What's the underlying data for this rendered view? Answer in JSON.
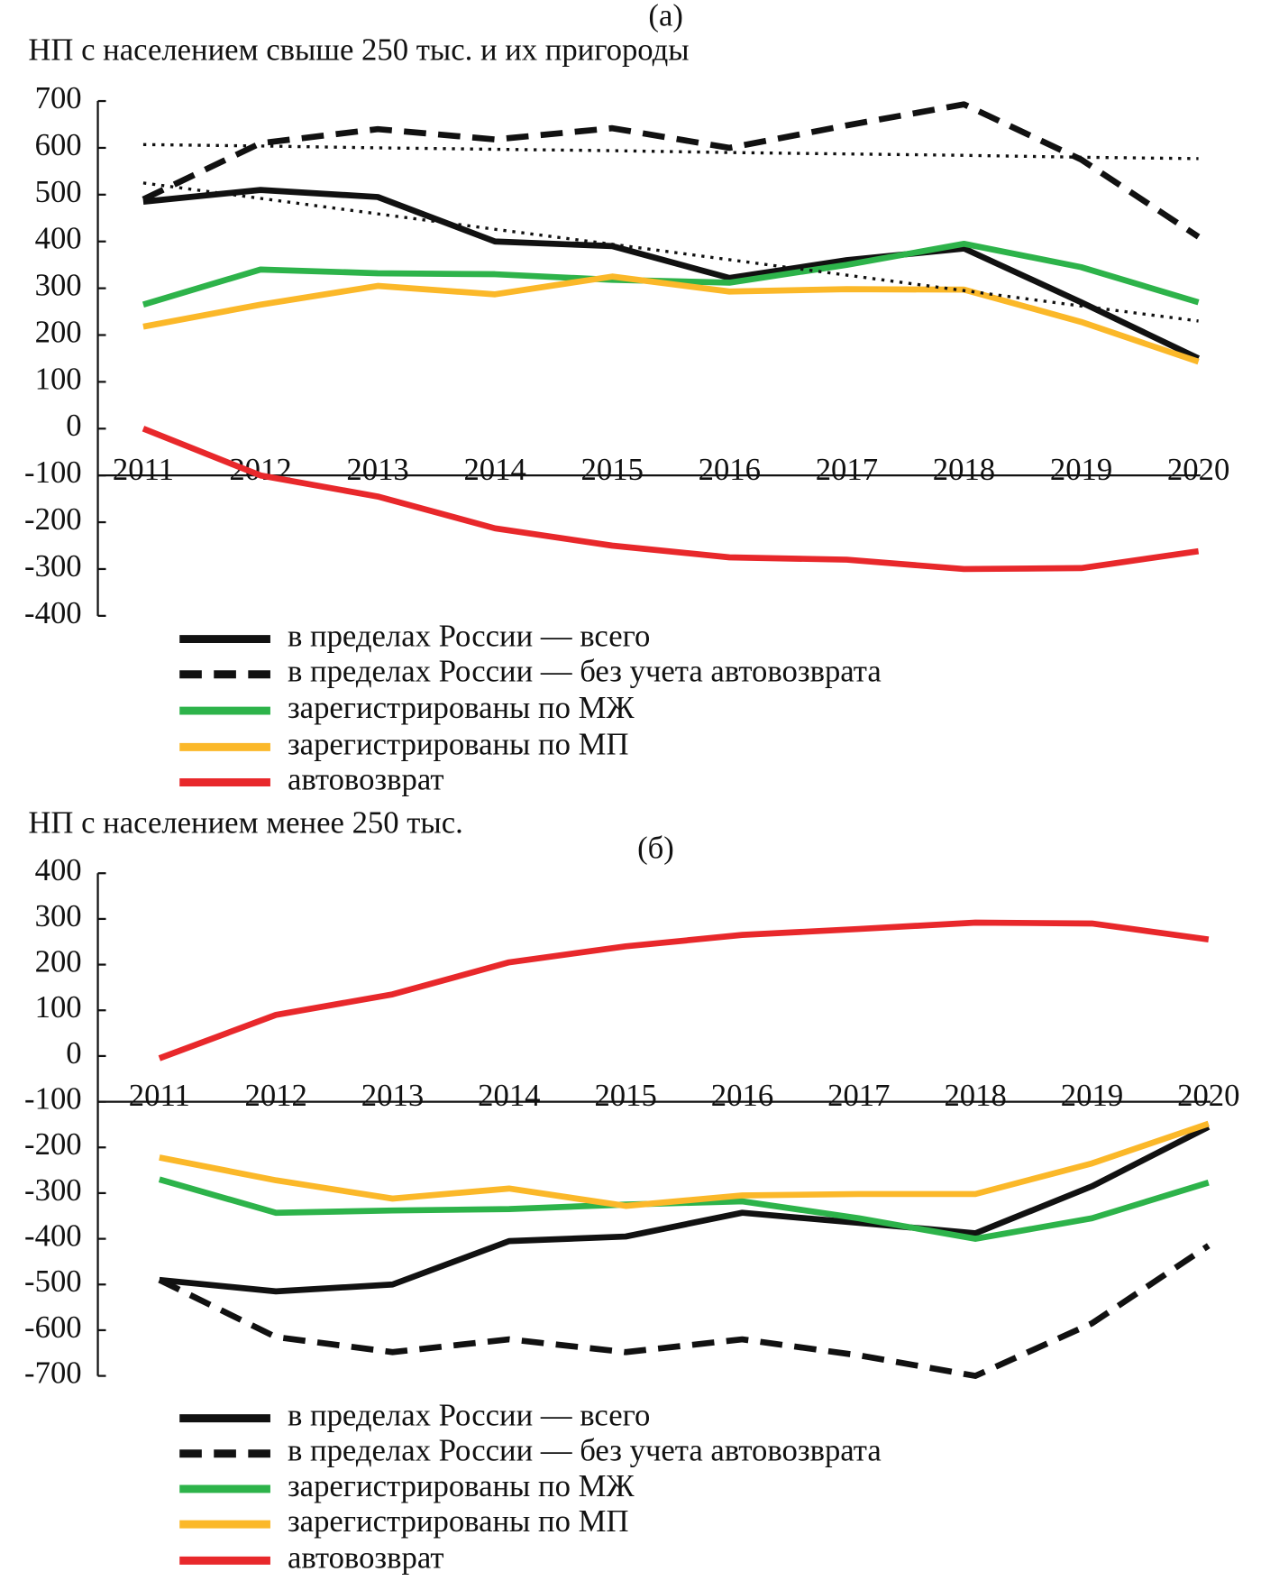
{
  "chart_data": [
    {
      "type": "line",
      "subtitle": "(а)",
      "title": "НП с населением свыше 250 тыс. и их пригороды",
      "categories": [
        "2011",
        "2012",
        "2013",
        "2014",
        "2015",
        "2016",
        "2017",
        "2018",
        "2019",
        "2020"
      ],
      "ylim": [
        -400,
        700
      ],
      "yticks": [
        -400,
        -300,
        -200,
        -100,
        0,
        100,
        200,
        300,
        400,
        500,
        600,
        700
      ],
      "x_axis_at": -100,
      "series": [
        {
          "name": "в пределах России — всего",
          "color": "#111111",
          "style": "solid",
          "values": [
            485,
            510,
            495,
            400,
            390,
            322,
            360,
            385,
            270,
            150
          ]
        },
        {
          "name": "в пределах России — без учета автовозврата",
          "color": "#111111",
          "style": "dashed",
          "values": [
            490,
            610,
            640,
            618,
            642,
            600,
            648,
            693,
            575,
            410
          ]
        },
        {
          "name": "зарегистрированы по МЖ",
          "color": "#2db34a",
          "style": "solid",
          "values": [
            265,
            340,
            332,
            330,
            318,
            312,
            350,
            395,
            345,
            270
          ]
        },
        {
          "name": "зарегистрированы по МП",
          "color": "#fbb829",
          "style": "solid",
          "values": [
            218,
            265,
            305,
            287,
            325,
            293,
            298,
            297,
            228,
            143
          ]
        },
        {
          "name": "автовозврат",
          "color": "#e8282b",
          "style": "solid",
          "values": [
            0,
            -100,
            -145,
            -213,
            -250,
            -275,
            -280,
            -300,
            -298,
            -262
          ]
        },
        {
          "color": "#111111",
          "style": "dotted",
          "values": [
            607,
            604,
            600,
            597,
            594,
            590,
            587,
            584,
            580,
            577
          ]
        },
        {
          "color": "#111111",
          "style": "dotted",
          "values": [
            525,
            492,
            459,
            426,
            394,
            361,
            328,
            295,
            262,
            230
          ]
        }
      ]
    },
    {
      "type": "line",
      "subtitle": "(б)",
      "title": "НП с населением менее 250 тыс.",
      "categories": [
        "2011",
        "2012",
        "2013",
        "2014",
        "2015",
        "2016",
        "2017",
        "2018",
        "2019",
        "2020"
      ],
      "ylim": [
        -700,
        400
      ],
      "yticks": [
        -700,
        -600,
        -500,
        -400,
        -300,
        -200,
        -100,
        0,
        100,
        200,
        300,
        400
      ],
      "x_axis_at": -100,
      "series": [
        {
          "name": "в пределах России — всего",
          "color": "#111111",
          "style": "solid",
          "values": [
            -490,
            -515,
            -500,
            -405,
            -395,
            -343,
            -365,
            -388,
            -285,
            -155
          ]
        },
        {
          "name": "в пределах России — без учета автовозврата",
          "color": "#111111",
          "style": "dashed",
          "values": [
            -490,
            -615,
            -648,
            -620,
            -648,
            -620,
            -655,
            -700,
            -585,
            -415
          ]
        },
        {
          "name": "зарегистрированы по МЖ",
          "color": "#2db34a",
          "style": "solid",
          "values": [
            -270,
            -343,
            -338,
            -335,
            -325,
            -318,
            -355,
            -400,
            -355,
            -277
          ]
        },
        {
          "name": "зарегистрированы по МП",
          "color": "#fbb829",
          "style": "solid",
          "values": [
            -222,
            -272,
            -312,
            -290,
            -328,
            -305,
            -302,
            -302,
            -235,
            -148
          ]
        },
        {
          "name": "автовозврат",
          "color": "#e8282b",
          "style": "solid",
          "values": [
            -5,
            90,
            135,
            205,
            240,
            265,
            278,
            292,
            290,
            255
          ]
        }
      ]
    }
  ]
}
